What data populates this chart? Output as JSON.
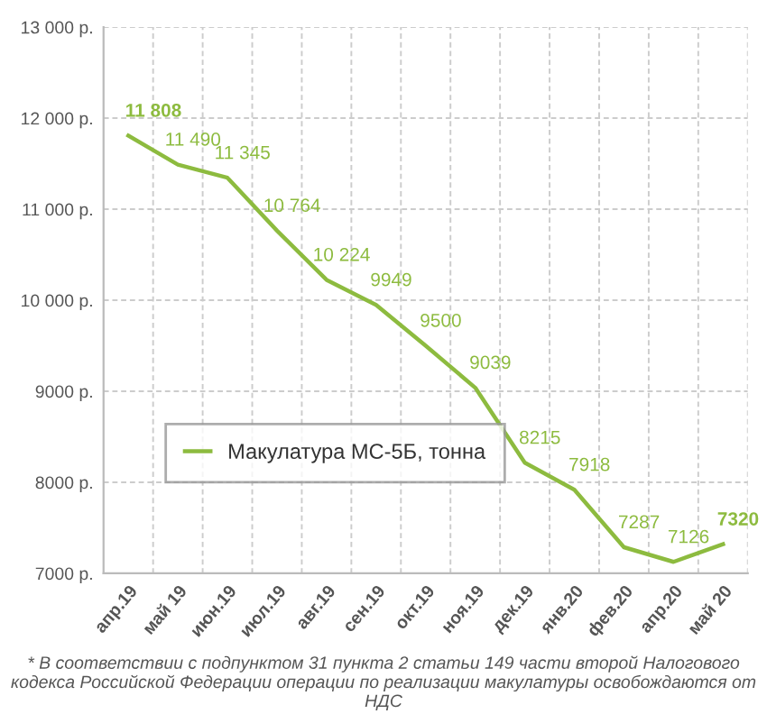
{
  "chart_data": {
    "type": "line",
    "categories": [
      "апр.19",
      "май 19",
      "июн.19",
      "июл.19",
      "авг.19",
      "сен.19",
      "окт.19",
      "ноя.19",
      "дек.19",
      "янв.20",
      "фев.20",
      "апр.20",
      "май 20"
    ],
    "series": [
      {
        "name": "Макулатура МС-5Б, тонна",
        "color": "#8dbb3f",
        "values": [
          11808,
          11490,
          11345,
          10764,
          10224,
          9949,
          9500,
          9039,
          8215,
          7918,
          7287,
          7126,
          7320
        ],
        "value_labels": [
          "11 808",
          "11 490",
          "11 345",
          "10 764",
          "10 224",
          "9949",
          "9500",
          "9039",
          "8215",
          "7918",
          "7287",
          "7126",
          "7320"
        ]
      }
    ],
    "ylim": [
      7000,
      13000
    ],
    "yticks": [
      {
        "value": 7000,
        "label": "7000 р."
      },
      {
        "value": 8000,
        "label": "8000 р."
      },
      {
        "value": 9000,
        "label": "9000 р."
      },
      {
        "value": 10000,
        "label": "10 000 р."
      },
      {
        "value": 11000,
        "label": "11 000 р."
      },
      {
        "value": 12000,
        "label": "12 000 р."
      },
      {
        "value": 13000,
        "label": "13 000 р."
      }
    ],
    "grid": true,
    "legend": "left",
    "marker": "none",
    "line_style": "solid",
    "annotations": [
      "* В соответствии с подпунктом 31 пункта 2 статьи 149 части второй Налогового кодекса Российской Федерации операции по реализации макулатуры освобождаются от НДС"
    ]
  }
}
